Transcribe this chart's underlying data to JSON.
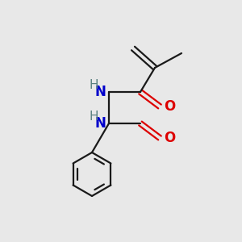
{
  "background_color": "#e8e8e8",
  "atom_colors": {
    "N": "#0000cc",
    "O": "#dd0000",
    "H": "#5a8080",
    "C": "#000000"
  },
  "bond_color": "#1a1a1a",
  "figsize": [
    3.0,
    3.0
  ],
  "dpi": 100,
  "bond_lw": 1.6,
  "font_size": 12
}
